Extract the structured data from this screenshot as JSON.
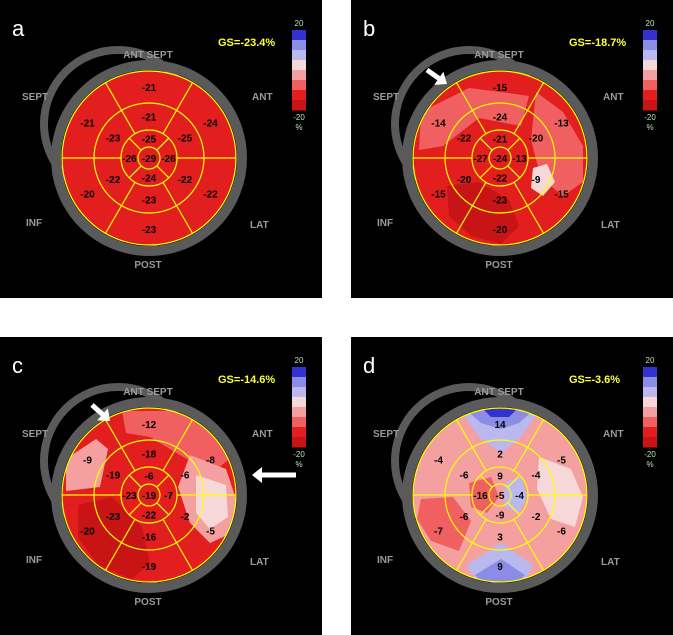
{
  "colors": {
    "background": "#000000",
    "myocardium_red": "#e21e1e",
    "dark_red": "#c81414",
    "light_red": "#f06060",
    "pink": "#f4a0a0",
    "pale": "#f7d8d8",
    "blue_light": "#b9b9f0",
    "blue_mid": "#8c8ce6",
    "blue_dark": "#3232d2",
    "segment_lines": "#ffff00",
    "ring_gray": "#5a5a5a"
  },
  "legend": {
    "max": "20",
    "min": "-20",
    "unit": "%"
  },
  "directions": {
    "ant_sept": "ANT_SEPT",
    "sept": "SEPT",
    "ant": "ANT",
    "inf": "INF",
    "lat": "LAT",
    "post": "POST"
  },
  "panels": [
    {
      "label": "a",
      "gs": "GS=-23.4%",
      "values": {
        "basal": [
          "-21",
          "-24",
          "-22",
          "-23",
          "-20",
          "-21"
        ],
        "mid": [
          "-21",
          "-25",
          "-22",
          "-23",
          "-22",
          "-23"
        ],
        "apical": [
          "-25",
          "-26",
          "-24",
          "-26"
        ],
        "apex": "-29"
      }
    },
    {
      "label": "b",
      "gs": "GS=-18.7%",
      "values": {
        "basal": [
          "-15",
          "-13",
          "-15",
          "-20",
          "-15",
          "-14"
        ],
        "mid": [
          "-24",
          "-20",
          "-9",
          "-23",
          "-20",
          "-22"
        ],
        "apical": [
          "-21",
          "-13",
          "-22",
          "-27"
        ],
        "apex": "-24"
      }
    },
    {
      "label": "c",
      "gs": "GS=-14.6%",
      "values": {
        "basal": [
          "-12",
          "-8",
          "-5",
          "-19",
          "-20",
          "-9"
        ],
        "mid": [
          "-18",
          "-6",
          "-2",
          "-16",
          "-23",
          "-19"
        ],
        "apical": [
          "-6",
          "-7",
          "-22",
          "-23"
        ],
        "apex": "-19"
      }
    },
    {
      "label": "d",
      "gs": "GS=-3.6%",
      "values": {
        "basal": [
          "14",
          "-5",
          "-6",
          "9",
          "-7",
          "-4"
        ],
        "mid": [
          "2",
          "-4",
          "-2",
          "3",
          "-6",
          "-6"
        ],
        "apical": [
          "9",
          "-4",
          "-9",
          "-16"
        ],
        "apex": "-5"
      }
    }
  ]
}
